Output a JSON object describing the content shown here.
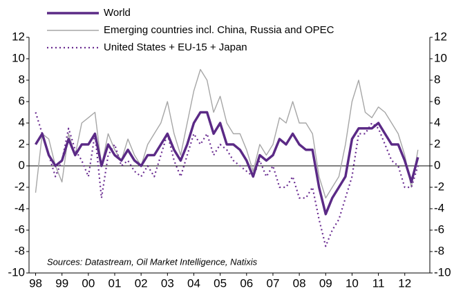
{
  "chart_data": {
    "type": "line",
    "annotation": "Sources: Datastream, Oil Market Intelligence, Natixis",
    "x": [
      1998,
      1998.25,
      1998.5,
      1998.75,
      1999,
      1999.25,
      1999.5,
      1999.75,
      2000,
      2000.25,
      2000.5,
      2000.75,
      2001,
      2001.25,
      2001.5,
      2001.75,
      2002,
      2002.25,
      2002.5,
      2002.75,
      2003,
      2003.25,
      2003.5,
      2003.75,
      2004,
      2004.25,
      2004.5,
      2004.75,
      2005,
      2005.25,
      2005.5,
      2005.75,
      2006,
      2006.25,
      2006.5,
      2006.75,
      2007,
      2007.25,
      2007.5,
      2007.75,
      2008,
      2008.25,
      2008.5,
      2008.75,
      2009,
      2009.25,
      2009.5,
      2009.75,
      2010,
      2010.25,
      2010.5,
      2010.75,
      2011,
      2011.25,
      2011.5,
      2011.75,
      2012,
      2012.25,
      2012.5
    ],
    "series": [
      {
        "name": "World",
        "color": "#5b2a86",
        "style": "solid",
        "values": [
          2,
          3,
          1,
          0,
          0.5,
          2.5,
          1,
          2,
          2,
          3,
          0,
          2,
          1,
          0.5,
          1.5,
          0.5,
          0,
          1,
          1,
          2,
          3,
          1.5,
          0.5,
          2,
          4,
          5,
          5,
          3,
          4,
          2,
          2,
          1.5,
          0.5,
          -1,
          1,
          0.5,
          1,
          2.5,
          2,
          3,
          2,
          1.5,
          1.5,
          -2,
          -4.5,
          -3,
          -2,
          -1,
          2.5,
          3.5,
          3.5,
          3.5,
          4,
          3,
          2,
          2,
          0.5,
          -1.5,
          0.8
        ]
      },
      {
        "name": "Emerging countries incl. China, Russia and OPEC",
        "color": "#a6a6a6",
        "style": "thin",
        "values": [
          -2.5,
          3,
          2.5,
          0,
          -1.5,
          3,
          1,
          4,
          4.5,
          5,
          0,
          3,
          1.5,
          0.5,
          2.5,
          1,
          0,
          2,
          3,
          4,
          6,
          3,
          1,
          4,
          7,
          9,
          8,
          5,
          6.5,
          4,
          3,
          3,
          1.5,
          -0.5,
          2,
          1,
          2,
          4.5,
          4,
          6,
          4,
          4,
          3,
          -1,
          -3,
          -2,
          -1,
          2,
          6,
          8,
          5,
          4.5,
          5.5,
          5,
          4,
          3,
          1,
          -2,
          1.5
        ]
      },
      {
        "name": "United States + EU-15 + Japan",
        "color": "#6a2c91",
        "style": "dotted",
        "values": [
          5,
          3,
          1,
          -1,
          0.5,
          3.5,
          1.5,
          0.5,
          -1,
          3,
          -3,
          1,
          2,
          0,
          0.5,
          -0.5,
          -1,
          0,
          -1,
          1,
          3,
          0.5,
          -1,
          1,
          3,
          2,
          3,
          1,
          2,
          1.5,
          0.5,
          0,
          -0.5,
          -1,
          0.5,
          -1,
          0,
          -2,
          -2,
          -1,
          -3,
          -3,
          -2,
          -5,
          -7.5,
          -6,
          -5,
          -3,
          -1,
          3,
          3,
          4,
          3.5,
          2,
          0.5,
          0,
          -2,
          -2,
          0
        ]
      }
    ],
    "xlim": [
      1997.75,
      2012.95
    ],
    "xticks": [
      {
        "value": 1998,
        "label": "98"
      },
      {
        "value": 1999,
        "label": "99"
      },
      {
        "value": 2000,
        "label": "00"
      },
      {
        "value": 2001,
        "label": "01"
      },
      {
        "value": 2002,
        "label": "02"
      },
      {
        "value": 2003,
        "label": "03"
      },
      {
        "value": 2004,
        "label": "04"
      },
      {
        "value": 2005,
        "label": "05"
      },
      {
        "value": 2006,
        "label": "06"
      },
      {
        "value": 2007,
        "label": "07"
      },
      {
        "value": 2008,
        "label": "08"
      },
      {
        "value": 2009,
        "label": "09"
      },
      {
        "value": 2010,
        "label": "10"
      },
      {
        "value": 2011,
        "label": "11"
      },
      {
        "value": 2012,
        "label": "12"
      }
    ],
    "ylim": [
      -10,
      12
    ],
    "yticks": [
      -10,
      -8,
      -6,
      -4,
      -2,
      0,
      2,
      4,
      6,
      8,
      10,
      12
    ],
    "right_axis": true
  }
}
